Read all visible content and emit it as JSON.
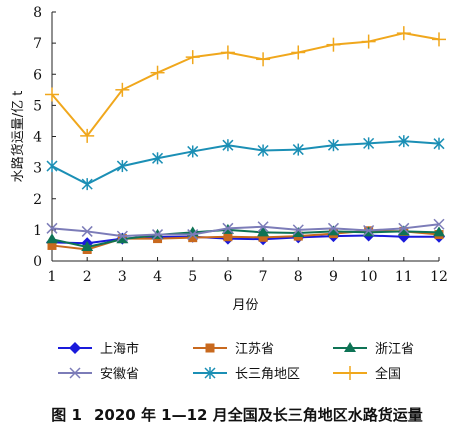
{
  "caption": {
    "figure_label": "图 1",
    "text": "2020 年 1—12 月全国及长三角地区水路货运量"
  },
  "chart_data": {
    "type": "line",
    "xlabel": "月份",
    "ylabel": "水路货运量/亿 t",
    "x": [
      1,
      2,
      3,
      4,
      5,
      6,
      7,
      8,
      9,
      10,
      11,
      12
    ],
    "xlim": [
      1,
      12
    ],
    "ylim": [
      0,
      8
    ],
    "yticks": [
      0,
      1,
      2,
      3,
      4,
      5,
      6,
      7,
      8
    ],
    "grid": false,
    "legend_position": "bottom",
    "series": [
      {
        "name": "上海市",
        "color": "#1a1adb",
        "marker": "diamond",
        "values": [
          0.6,
          0.57,
          0.72,
          0.77,
          0.78,
          0.72,
          0.7,
          0.76,
          0.8,
          0.82,
          0.78,
          0.78
        ]
      },
      {
        "name": "江苏省",
        "color": "#c8691e",
        "marker": "square",
        "values": [
          0.5,
          0.37,
          0.72,
          0.72,
          0.75,
          0.78,
          0.76,
          0.8,
          0.88,
          0.97,
          0.95,
          0.85
        ]
      },
      {
        "name": "浙江省",
        "color": "#0e7355",
        "marker": "triangle",
        "values": [
          0.7,
          0.45,
          0.7,
          0.84,
          0.92,
          1.0,
          0.92,
          0.9,
          0.95,
          0.92,
          0.95,
          0.92
        ]
      },
      {
        "name": "安徽省",
        "color": "#7c7cb8",
        "marker": "x",
        "values": [
          1.05,
          0.95,
          0.8,
          0.85,
          0.85,
          1.05,
          1.1,
          1.0,
          1.05,
          0.98,
          1.05,
          1.18
        ]
      },
      {
        "name": "长三角地区",
        "color": "#1b8fb5",
        "marker": "star",
        "values": [
          3.05,
          2.47,
          3.05,
          3.3,
          3.52,
          3.72,
          3.55,
          3.58,
          3.72,
          3.78,
          3.85,
          3.77
        ]
      },
      {
        "name": "全国",
        "color": "#f0a71c",
        "marker": "plus",
        "values": [
          5.35,
          4.02,
          5.5,
          6.05,
          6.55,
          6.7,
          6.48,
          6.7,
          6.95,
          7.05,
          7.32,
          7.12
        ]
      }
    ]
  }
}
